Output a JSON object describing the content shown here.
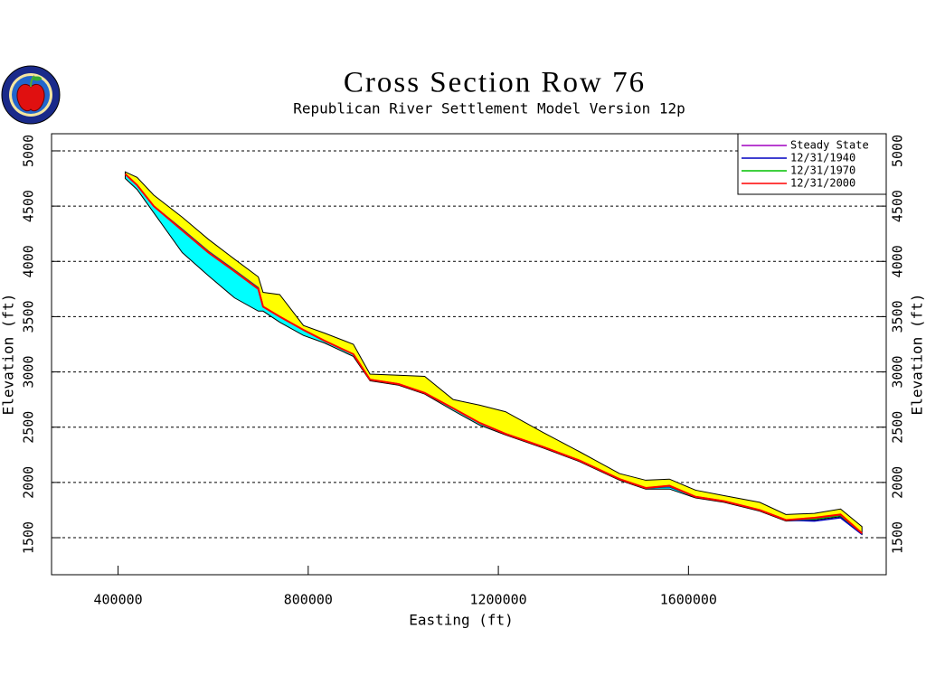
{
  "chart_data": {
    "type": "line",
    "title": "Cross Section Row 76",
    "subtitle": "Republican River Settlement Model Version 12p",
    "x_label": "Easting (ft)",
    "y_label": "Elevation (ft)",
    "xlim": [
      260000,
      2016000
    ],
    "ylim": [
      1165,
      5155
    ],
    "xticks": [
      400000,
      800000,
      1200000,
      1600000
    ],
    "yticks": [
      1500,
      2000,
      2500,
      3000,
      3500,
      4000,
      4500,
      5000
    ],
    "grid": true,
    "legend": "upper right",
    "x": [
      415000,
      440000,
      475000,
      535000,
      590000,
      645000,
      695000,
      705000,
      740000,
      790000,
      835000,
      895000,
      930000,
      990000,
      1045000,
      1105000,
      1160000,
      1215000,
      1295000,
      1370000,
      1455000,
      1510000,
      1560000,
      1615000,
      1675000,
      1750000,
      1805000,
      1865000,
      1920000,
      1965000
    ],
    "areas": [
      {
        "color": "#ffff00",
        "values": [
          4810,
          4760,
          4600,
          4400,
          4200,
          4020,
          3860,
          3720,
          3700,
          3420,
          3350,
          3250,
          2980,
          2970,
          2960,
          2750,
          2700,
          2640,
          2450,
          2280,
          2080,
          2020,
          2030,
          1930,
          1880,
          1820,
          1710,
          1720,
          1760,
          1600
        ]
      },
      {
        "color": "#00ffff",
        "values": [
          4750,
          4650,
          4440,
          4080,
          3870,
          3670,
          3550,
          3550,
          3450,
          3330,
          3260,
          3140,
          2920,
          2880,
          2800,
          2650,
          2520,
          2430,
          2310,
          2190,
          2020,
          1940,
          1940,
          1860,
          1820,
          1740,
          1650,
          1660,
          1690,
          1530
        ]
      }
    ],
    "series": [
      {
        "name": "Steady State",
        "color": "#a000c0",
        "values": [
          4790,
          4690,
          4500,
          4290,
          4090,
          3920,
          3760,
          3590,
          3500,
          3380,
          3280,
          3160,
          2930,
          2890,
          2810,
          2670,
          2540,
          2440,
          2320,
          2200,
          2030,
          1950,
          1970,
          1870,
          1830,
          1750,
          1660,
          1670,
          1700,
          1540
        ]
      },
      {
        "name": "12/31/1940",
        "color": "#0000c0",
        "values": [
          4790,
          4690,
          4500,
          4290,
          4090,
          3920,
          3760,
          3590,
          3500,
          3380,
          3280,
          3160,
          2930,
          2890,
          2810,
          2670,
          2540,
          2440,
          2320,
          2200,
          2030,
          1950,
          1960,
          1870,
          1830,
          1750,
          1660,
          1650,
          1680,
          1530
        ]
      },
      {
        "name": "12/31/1970",
        "color": "#00c000",
        "values": [
          4790,
          4690,
          4500,
          4285,
          4085,
          3915,
          3755,
          3590,
          3500,
          3380,
          3280,
          3160,
          2930,
          2890,
          2810,
          2670,
          2540,
          2440,
          2320,
          2200,
          2030,
          1950,
          1965,
          1870,
          1830,
          1750,
          1660,
          1670,
          1700,
          1540
        ]
      },
      {
        "name": "12/31/2000",
        "color": "#ff0000",
        "values": [
          4790,
          4690,
          4500,
          4280,
          4080,
          3910,
          3750,
          3590,
          3500,
          3380,
          3280,
          3160,
          2930,
          2890,
          2810,
          2670,
          2540,
          2440,
          2320,
          2200,
          2030,
          1950,
          1970,
          1870,
          1830,
          1750,
          1660,
          1680,
          1710,
          1540
        ]
      }
    ]
  }
}
